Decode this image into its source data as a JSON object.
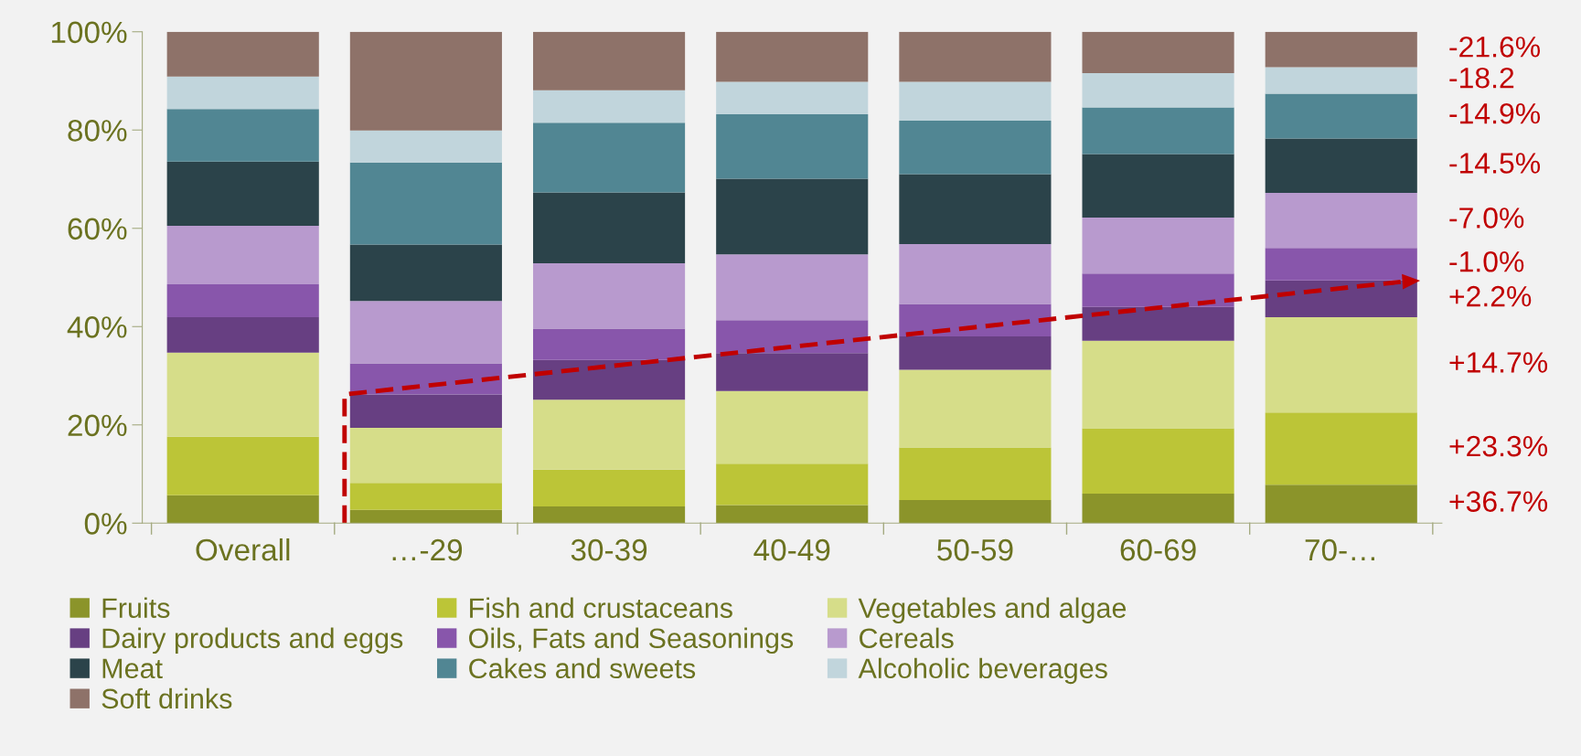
{
  "chart_data": {
    "type": "bar",
    "stacked": true,
    "categories": [
      "Overall",
      "…-29",
      "30-39",
      "40-49",
      "50-59",
      "60-69",
      "70-…"
    ],
    "series": [
      {
        "name": "Fruits",
        "color": "#8b942a",
        "values": [
          5.7,
          2.7,
          3.4,
          3.7,
          4.7,
          6.0,
          7.8
        ]
      },
      {
        "name": "Fish and crustaceans",
        "color": "#bcc537",
        "values": [
          11.9,
          5.5,
          7.5,
          8.4,
          10.7,
          13.3,
          14.7
        ]
      },
      {
        "name": "Vegetables and algae",
        "color": "#d6dd89",
        "values": [
          17.1,
          11.2,
          14.2,
          14.8,
          15.8,
          17.8,
          19.4
        ]
      },
      {
        "name": "Dairy products and eggs",
        "color": "#673f82",
        "values": [
          7.2,
          6.8,
          8.1,
          7.7,
          6.8,
          6.9,
          7.5
        ]
      },
      {
        "name": "Oils, Fats and Seasonings",
        "color": "#8856ab",
        "values": [
          6.7,
          6.3,
          6.4,
          6.7,
          6.6,
          6.8,
          6.6
        ]
      },
      {
        "name": "Cereals",
        "color": "#b89ace",
        "values": [
          11.9,
          12.7,
          13.3,
          13.4,
          12.2,
          11.4,
          11.2
        ]
      },
      {
        "name": "Meat",
        "color": "#2b434a",
        "values": [
          13.1,
          11.5,
          14.4,
          15.4,
          14.2,
          12.9,
          11.1
        ]
      },
      {
        "name": "Cakes and sweets",
        "color": "#518693",
        "values": [
          10.7,
          16.7,
          14.2,
          13.1,
          10.9,
          9.5,
          9.1
        ]
      },
      {
        "name": "Alcoholic beverages",
        "color": "#c1d5dc",
        "values": [
          6.6,
          6.5,
          6.6,
          6.6,
          7.9,
          7.0,
          5.4
        ]
      },
      {
        "name": "Soft drinks",
        "color": "#8e7269",
        "values": [
          9.1,
          20.1,
          11.9,
          10.2,
          10.2,
          8.4,
          7.2
        ]
      }
    ],
    "ylim": [
      0,
      100
    ],
    "yticks": [
      {
        "value": 0,
        "label": "0%"
      },
      {
        "value": 20,
        "label": "20%"
      },
      {
        "value": 40,
        "label": "40%"
      },
      {
        "value": 60,
        "label": "60%"
      },
      {
        "value": 80,
        "label": "80%"
      },
      {
        "value": 100,
        "label": "100%"
      }
    ],
    "annotations": [
      "-21.6%",
      "-18.2",
      "-14.9%",
      "-14.5%",
      "-7.0%",
      "-1.0%",
      "+2.2%",
      "+14.7%",
      "+23.3%",
      "+36.7%"
    ],
    "legend": "bottom",
    "grid": false
  }
}
